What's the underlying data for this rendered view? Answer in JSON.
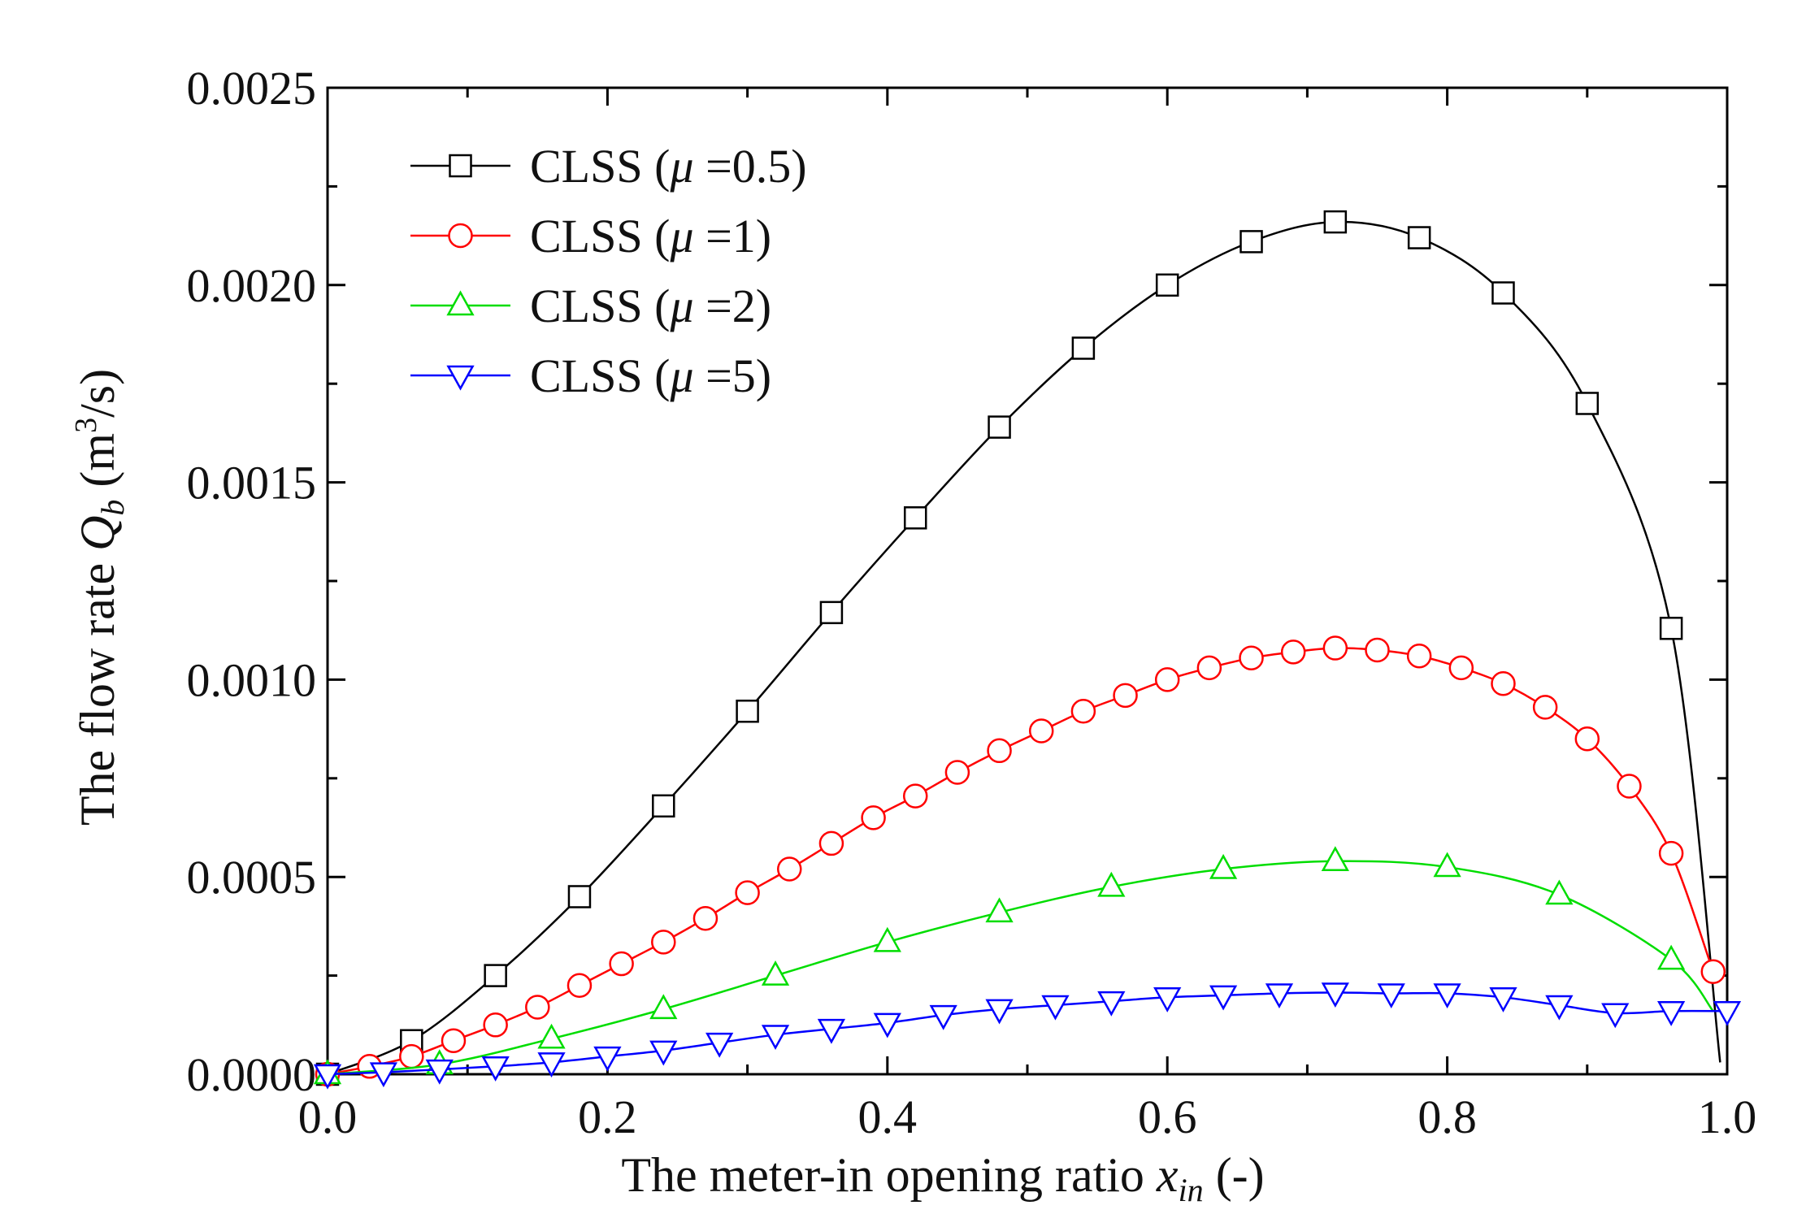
{
  "chart_data": {
    "type": "line",
    "title": "",
    "xlabel": "The meter-in opening ratio",
    "xlabel_symbol": "x",
    "xlabel_subscript": "in",
    "xlabel_unit": "(-)",
    "ylabel": "The flow rate",
    "ylabel_symbol": "Q",
    "ylabel_subscript": "b",
    "ylabel_unit_prefix": "(m",
    "ylabel_unit_exp": "3",
    "ylabel_unit_suffix": "/s)",
    "xlim": [
      0.0,
      1.0
    ],
    "ylim": [
      0.0,
      0.0025
    ],
    "x_ticks": [
      0.0,
      0.2,
      0.4,
      0.6,
      0.8,
      1.0
    ],
    "x_tick_labels": [
      "0.0",
      "0.2",
      "0.4",
      "0.6",
      "0.8",
      "1.0"
    ],
    "y_ticks": [
      0.0,
      0.0005,
      0.001,
      0.0015,
      0.002,
      0.0025
    ],
    "y_tick_labels": [
      "0.0000",
      "0.0005",
      "0.0010",
      "0.0015",
      "0.0020",
      "0.0025"
    ],
    "grid": false,
    "legend_position": "top-left",
    "series": [
      {
        "name": "CLSS (μ =0.5)",
        "legend_prefix": "CLSS (",
        "legend_mu": "μ",
        "legend_suffix": " =0.5)",
        "color": "#000000",
        "marker": "square",
        "x": [
          0.0,
          0.06,
          0.12,
          0.18,
          0.24,
          0.3,
          0.36,
          0.42,
          0.48,
          0.54,
          0.6,
          0.66,
          0.72,
          0.78,
          0.84,
          0.9,
          0.96,
          0.995
        ],
        "y": [
          0.0,
          8.5e-05,
          0.00025,
          0.00045,
          0.00068,
          0.00092,
          0.00117,
          0.00141,
          0.00164,
          0.00184,
          0.002,
          0.00211,
          0.00216,
          0.00212,
          0.00198,
          0.0017,
          0.00113,
          3e-05
        ],
        "marker_indices": [
          0,
          1,
          2,
          3,
          4,
          5,
          6,
          7,
          8,
          9,
          10,
          11,
          12,
          13,
          14,
          15,
          16
        ]
      },
      {
        "name": "CLSS (μ =1)",
        "legend_prefix": "CLSS (",
        "legend_mu": "μ",
        "legend_suffix": " =1)",
        "color": "#ff0000",
        "marker": "circle",
        "x": [
          0.0,
          0.03,
          0.06,
          0.09,
          0.12,
          0.15,
          0.18,
          0.21,
          0.24,
          0.27,
          0.3,
          0.33,
          0.36,
          0.39,
          0.42,
          0.45,
          0.48,
          0.51,
          0.54,
          0.57,
          0.6,
          0.63,
          0.66,
          0.69,
          0.72,
          0.75,
          0.78,
          0.81,
          0.84,
          0.87,
          0.9,
          0.93,
          0.96,
          0.99
        ],
        "y": [
          0.0,
          2e-05,
          4.5e-05,
          8.5e-05,
          0.000125,
          0.00017,
          0.000225,
          0.00028,
          0.000335,
          0.000395,
          0.00046,
          0.00052,
          0.000585,
          0.00065,
          0.000705,
          0.000765,
          0.00082,
          0.00087,
          0.00092,
          0.00096,
          0.001,
          0.00103,
          0.001055,
          0.00107,
          0.00108,
          0.001075,
          0.00106,
          0.00103,
          0.00099,
          0.00093,
          0.00085,
          0.00073,
          0.00056,
          0.00026
        ]
      },
      {
        "name": "CLSS (μ =2)",
        "legend_prefix": "CLSS (",
        "legend_mu": "μ",
        "legend_suffix": " =2)",
        "color": "#00dd00",
        "marker": "triangle-up",
        "x": [
          0.0,
          0.08,
          0.16,
          0.24,
          0.32,
          0.4,
          0.48,
          0.56,
          0.64,
          0.72,
          0.8,
          0.88,
          0.96,
          0.99
        ],
        "y": [
          0.0,
          2.5e-05,
          9e-05,
          0.000165,
          0.00025,
          0.000335,
          0.00041,
          0.000475,
          0.00052,
          0.00054,
          0.000525,
          0.000455,
          0.00029,
          0.00016
        ],
        "marker_indices": [
          0,
          1,
          2,
          3,
          4,
          5,
          6,
          7,
          8,
          9,
          10,
          11,
          12
        ]
      },
      {
        "name": "CLSS (μ =5)",
        "legend_prefix": "CLSS (",
        "legend_mu": "μ",
        "legend_suffix": " =5)",
        "color": "#0000ff",
        "marker": "triangle-down",
        "x": [
          0.0,
          0.04,
          0.08,
          0.12,
          0.16,
          0.2,
          0.24,
          0.28,
          0.32,
          0.36,
          0.4,
          0.44,
          0.48,
          0.52,
          0.56,
          0.6,
          0.64,
          0.68,
          0.72,
          0.76,
          0.8,
          0.84,
          0.88,
          0.92,
          0.96,
          1.0
        ],
        "y": [
          0.0,
          5e-06,
          1.2e-05,
          2e-05,
          3e-05,
          4.5e-05,
          6e-05,
          8e-05,
          0.0001,
          0.000115,
          0.00013,
          0.00015,
          0.000165,
          0.000175,
          0.000185,
          0.000195,
          0.0002,
          0.000205,
          0.000207,
          0.000205,
          0.000205,
          0.000195,
          0.000175,
          0.000155,
          0.00016,
          0.00016
        ]
      }
    ]
  }
}
